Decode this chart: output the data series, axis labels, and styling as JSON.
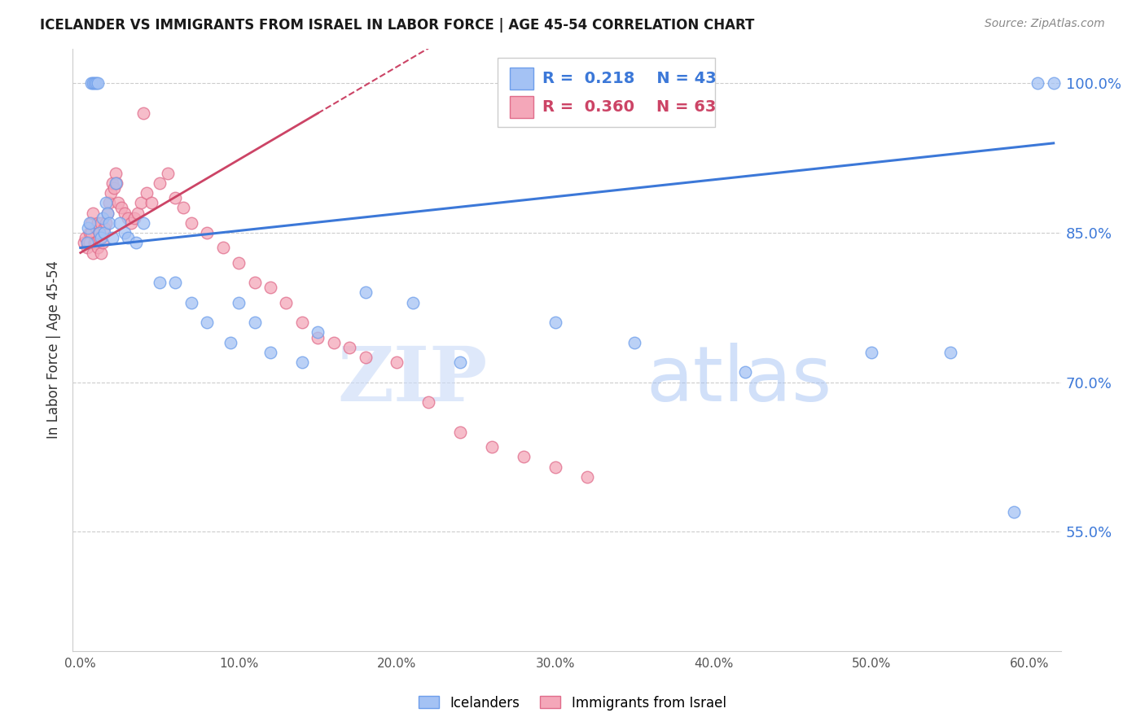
{
  "title": "ICELANDER VS IMMIGRANTS FROM ISRAEL IN LABOR FORCE | AGE 45-54 CORRELATION CHART",
  "source": "Source: ZipAtlas.com",
  "ylabel": "In Labor Force | Age 45-54",
  "ylim": [
    43.0,
    103.5
  ],
  "xlim": [
    -0.5,
    62.0
  ],
  "yticks": [
    55.0,
    70.0,
    85.0,
    100.0
  ],
  "ytick_labels": [
    "55.0%",
    "70.0%",
    "85.0%",
    "100.0%"
  ],
  "xlabel_vals": [
    0.0,
    10.0,
    20.0,
    30.0,
    40.0,
    50.0,
    60.0
  ],
  "legend_r_blue": "0.218",
  "legend_n_blue": "43",
  "legend_r_pink": "0.360",
  "legend_n_pink": "63",
  "blue_color": "#a4c2f4",
  "blue_edge_color": "#6d9eeb",
  "pink_color": "#f4a7b9",
  "pink_edge_color": "#e06c8b",
  "blue_line_color": "#3c78d8",
  "pink_line_color": "#cc4466",
  "watermark_zip": "ZIP",
  "watermark_atlas": "atlas",
  "blue_dots_x": [
    0.4,
    0.5,
    0.6,
    0.7,
    0.8,
    0.9,
    1.0,
    1.1,
    1.2,
    1.3,
    1.4,
    1.5,
    1.6,
    1.7,
    1.8,
    2.0,
    2.2,
    2.5,
    2.8,
    3.0,
    3.5,
    4.0,
    5.0,
    6.0,
    7.0,
    8.0,
    9.5,
    10.0,
    11.0,
    12.0,
    14.0,
    15.0,
    18.0,
    21.0,
    24.0,
    30.0,
    35.0,
    42.0,
    50.0,
    55.0,
    59.0,
    60.5,
    61.5
  ],
  "blue_dots_y": [
    84.0,
    85.5,
    86.0,
    100.0,
    100.0,
    100.0,
    100.0,
    100.0,
    85.0,
    84.5,
    86.5,
    85.0,
    88.0,
    87.0,
    86.0,
    84.5,
    90.0,
    86.0,
    85.0,
    84.5,
    84.0,
    86.0,
    80.0,
    80.0,
    78.0,
    76.0,
    74.0,
    78.0,
    76.0,
    73.0,
    72.0,
    75.0,
    79.0,
    78.0,
    72.0,
    76.0,
    74.0,
    71.0,
    73.0,
    73.0,
    57.0,
    100.0,
    100.0
  ],
  "pink_dots_x": [
    0.2,
    0.3,
    0.4,
    0.5,
    0.6,
    0.6,
    0.7,
    0.7,
    0.8,
    0.8,
    0.9,
    1.0,
    1.0,
    1.1,
    1.1,
    1.2,
    1.2,
    1.3,
    1.3,
    1.4,
    1.5,
    1.6,
    1.7,
    1.8,
    1.9,
    2.0,
    2.1,
    2.2,
    2.3,
    2.4,
    2.6,
    2.8,
    3.0,
    3.2,
    3.4,
    3.6,
    3.8,
    4.0,
    4.2,
    4.5,
    5.0,
    5.5,
    6.0,
    6.5,
    7.0,
    8.0,
    9.0,
    10.0,
    11.0,
    12.0,
    13.0,
    14.0,
    15.0,
    16.0,
    17.0,
    18.0,
    20.0,
    22.0,
    24.0,
    26.0,
    28.0,
    30.0,
    32.0
  ],
  "pink_dots_y": [
    84.0,
    84.5,
    83.5,
    84.0,
    85.0,
    84.0,
    86.0,
    85.0,
    87.0,
    83.0,
    84.0,
    85.5,
    84.0,
    86.0,
    83.5,
    85.0,
    84.5,
    86.0,
    83.0,
    84.0,
    85.5,
    86.0,
    87.0,
    88.0,
    89.0,
    90.0,
    89.5,
    91.0,
    90.0,
    88.0,
    87.5,
    87.0,
    86.5,
    86.0,
    86.5,
    87.0,
    88.0,
    97.0,
    89.0,
    88.0,
    90.0,
    91.0,
    88.5,
    87.5,
    86.0,
    85.0,
    83.5,
    82.0,
    80.0,
    79.5,
    78.0,
    76.0,
    74.5,
    74.0,
    73.5,
    72.5,
    72.0,
    68.0,
    65.0,
    63.5,
    62.5,
    61.5,
    60.5
  ],
  "blue_trend_x0": 0.0,
  "blue_trend_y0": 83.5,
  "blue_trend_x1": 61.5,
  "blue_trend_y1": 94.0,
  "pink_trend_x0": 0.0,
  "pink_trend_y0": 83.0,
  "pink_trend_x1": 15.0,
  "pink_trend_y1": 97.0,
  "pink_dash_x0": 15.0,
  "pink_dash_x1": 25.0
}
